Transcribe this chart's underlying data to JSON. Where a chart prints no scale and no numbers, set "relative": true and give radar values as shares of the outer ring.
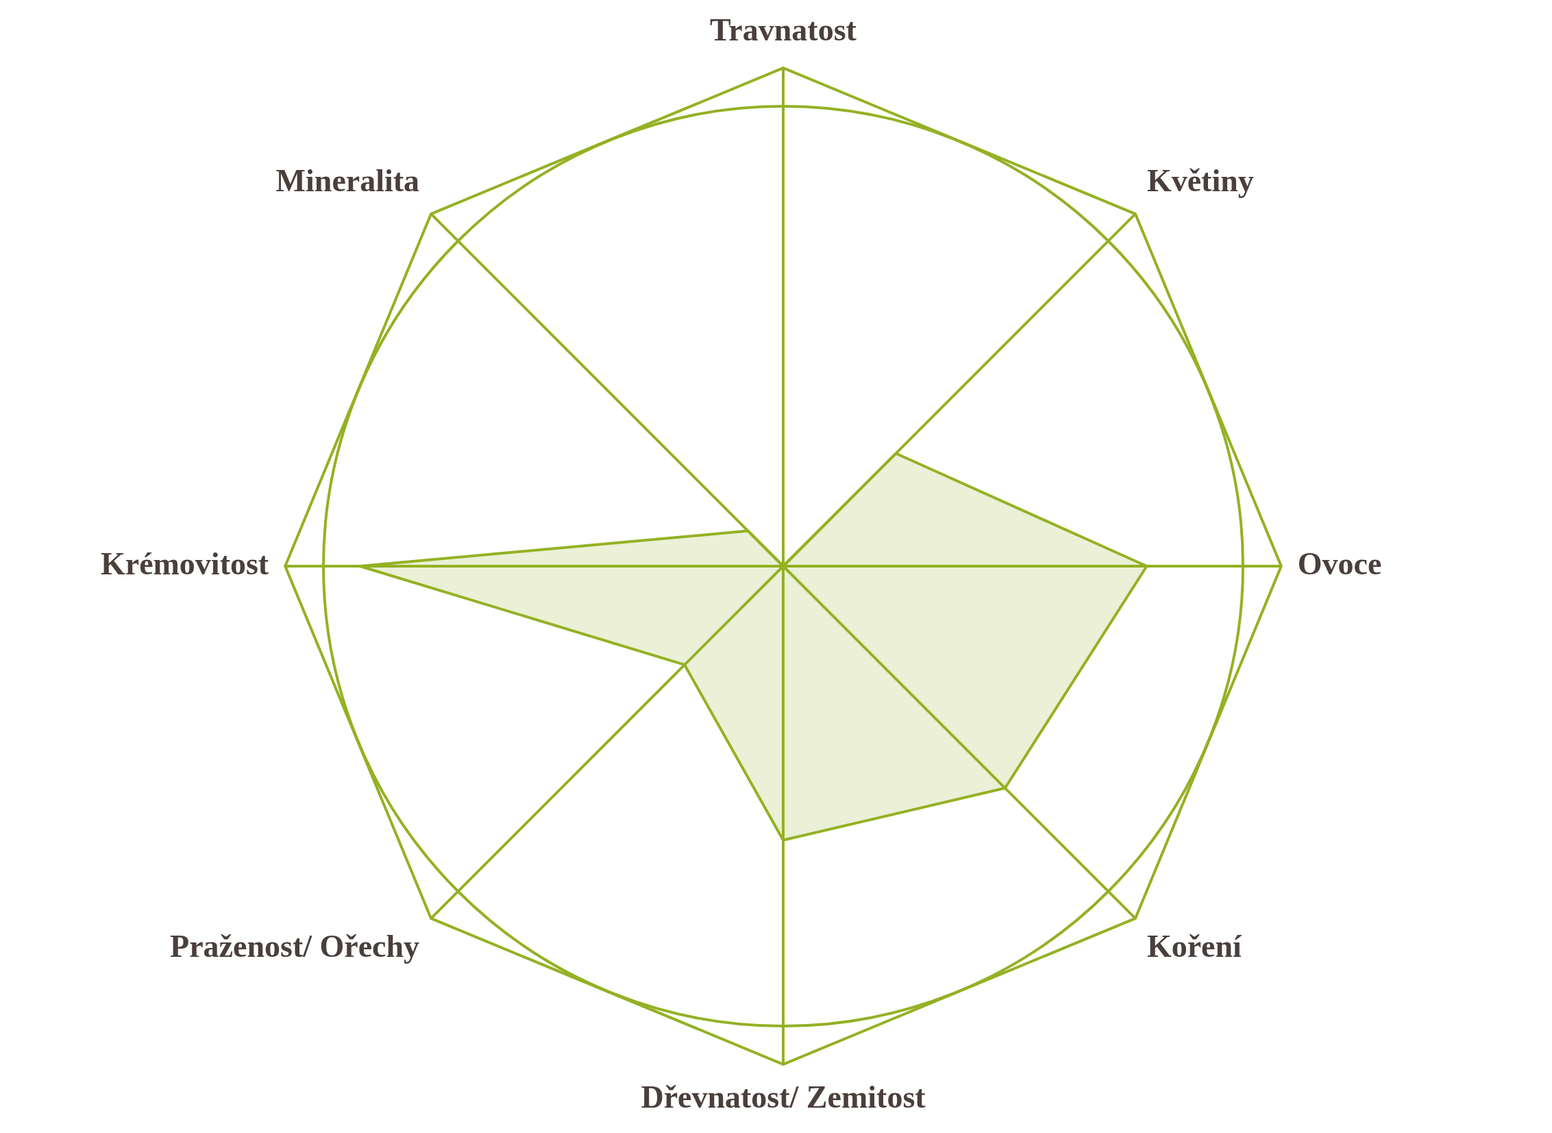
{
  "chart_data": {
    "type": "radar",
    "relative": true,
    "grid": true,
    "categories": [
      "Travnatost",
      "Květiny",
      "Ovoce",
      "Koření",
      "Dřevnatost/ Zemitost",
      "Praženost/ Ořechy",
      "Krémovitost",
      "Mineralita"
    ],
    "series": [
      {
        "color": "#94b123",
        "values": [
          0,
          0.32,
          0.73,
          0.63,
          0.55,
          0.28,
          0.85,
          0.1
        ]
      }
    ]
  }
}
